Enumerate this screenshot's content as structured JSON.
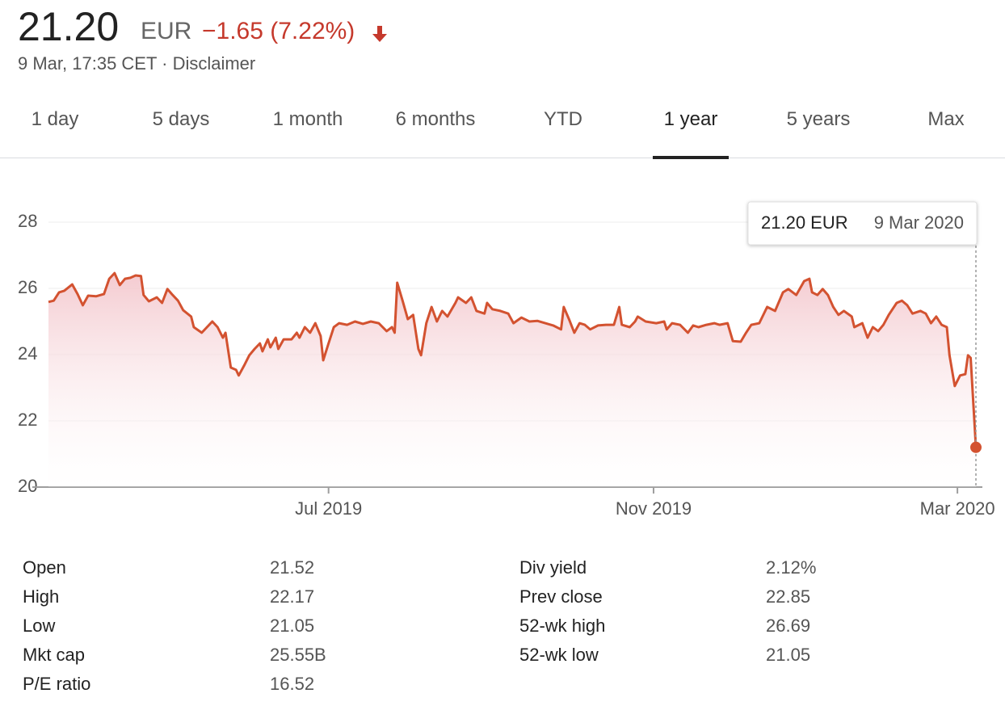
{
  "header": {
    "price": "21.20",
    "currency": "EUR",
    "change": "−1.65 (7.22%)",
    "timestamp": "9 Mar, 17:35 CET · Disclaimer"
  },
  "tabs": {
    "items": [
      "1 day",
      "5 days",
      "1 month",
      "6 months",
      "YTD",
      "1 year",
      "5 years",
      "Max"
    ],
    "active": 5
  },
  "chart_data": {
    "type": "line",
    "color": "#d35230",
    "grid": true,
    "tooltip": {
      "value": "21.20 EUR",
      "date": "9 Mar 2020"
    },
    "xlim": [
      0,
      351
    ],
    "xticks": [
      {
        "value": 106,
        "label": "Jul 2019"
      },
      {
        "value": 229,
        "label": "Nov 2019"
      },
      {
        "value": 344,
        "label": "Mar 2020"
      }
    ],
    "ylim": [
      20,
      28
    ],
    "yticks": [
      20,
      22,
      24,
      26,
      28
    ],
    "x": [
      0,
      2,
      4,
      6,
      9,
      11,
      13,
      15,
      18,
      21,
      23,
      25,
      27,
      29,
      31,
      33,
      35,
      36,
      38,
      41,
      43,
      45,
      47,
      49,
      51,
      54,
      55,
      58,
      60,
      62,
      64,
      66,
      67,
      69,
      71,
      72,
      74,
      76,
      78,
      80,
      81,
      83,
      84,
      86,
      87,
      89,
      92,
      94,
      95,
      97,
      99,
      101,
      103,
      104,
      106,
      108,
      110,
      113,
      116,
      119,
      122,
      125,
      128,
      130,
      131,
      132,
      134,
      136,
      138,
      140,
      141,
      143,
      145,
      147,
      149,
      151,
      154,
      155,
      158,
      160,
      162,
      165,
      166,
      168,
      171,
      174,
      176,
      179,
      182,
      185,
      188,
      191,
      194,
      195,
      197,
      199,
      201,
      203,
      205,
      208,
      211,
      214,
      216,
      217,
      220,
      222,
      223,
      226,
      230,
      233,
      234,
      236,
      239,
      242,
      244,
      246,
      249,
      252,
      254,
      257,
      259,
      262,
      264,
      266,
      269,
      272,
      275,
      278,
      280,
      283,
      286,
      288,
      289,
      291,
      293,
      295,
      297,
      299,
      301,
      304,
      305,
      308,
      310,
      312,
      314,
      316,
      318,
      321,
      323,
      325,
      327,
      330,
      332,
      334,
      336,
      338,
      340,
      341,
      343,
      345,
      347,
      348,
      349,
      351
    ],
    "values": [
      25.59,
      25.63,
      25.88,
      25.93,
      26.12,
      25.83,
      25.49,
      25.78,
      25.76,
      25.83,
      26.29,
      26.46,
      26.1,
      26.29,
      26.32,
      26.39,
      26.37,
      25.8,
      25.61,
      25.73,
      25.56,
      25.98,
      25.8,
      25.63,
      25.34,
      25.15,
      24.83,
      24.66,
      24.83,
      25.0,
      24.83,
      24.51,
      24.66,
      23.61,
      23.54,
      23.37,
      23.66,
      23.98,
      24.17,
      24.34,
      24.1,
      24.46,
      24.22,
      24.51,
      24.17,
      24.46,
      24.46,
      24.66,
      24.51,
      24.83,
      24.66,
      24.95,
      24.56,
      23.83,
      24.34,
      24.83,
      24.95,
      24.9,
      25.0,
      24.93,
      25.0,
      24.95,
      24.71,
      24.83,
      24.66,
      26.17,
      25.63,
      25.07,
      25.2,
      24.17,
      23.98,
      24.95,
      25.44,
      25.0,
      25.32,
      25.15,
      25.56,
      25.73,
      25.56,
      25.73,
      25.32,
      25.24,
      25.56,
      25.37,
      25.32,
      25.24,
      24.95,
      25.12,
      25.0,
      25.02,
      24.95,
      24.88,
      24.76,
      25.44,
      25.07,
      24.66,
      24.95,
      24.9,
      24.76,
      24.88,
      24.9,
      24.9,
      25.44,
      24.9,
      24.83,
      25.0,
      25.15,
      25.0,
      24.95,
      25.0,
      24.76,
      24.95,
      24.9,
      24.66,
      24.88,
      24.83,
      24.9,
      24.95,
      24.9,
      24.95,
      24.41,
      24.39,
      24.66,
      24.9,
      24.95,
      25.44,
      25.32,
      25.88,
      25.98,
      25.8,
      26.22,
      26.29,
      25.88,
      25.8,
      25.98,
      25.8,
      25.44,
      25.2,
      25.32,
      25.15,
      24.83,
      24.95,
      24.51,
      24.83,
      24.71,
      24.9,
      25.2,
      25.56,
      25.63,
      25.49,
      25.24,
      25.32,
      25.24,
      24.95,
      25.15,
      24.9,
      24.83,
      23.98,
      23.05,
      23.37,
      23.41,
      23.98,
      23.9,
      21.2
    ]
  },
  "stats": [
    [
      {
        "label": "Open",
        "value": "21.52"
      },
      {
        "label": "High",
        "value": "22.17"
      },
      {
        "label": "Low",
        "value": "21.05"
      },
      {
        "label": "Mkt cap",
        "value": "25.55B"
      },
      {
        "label": "P/E ratio",
        "value": "16.52"
      }
    ],
    [
      {
        "label": "Div yield",
        "value": "2.12%"
      },
      {
        "label": "Prev close",
        "value": "22.85"
      },
      {
        "label": "52-wk high",
        "value": "26.69"
      },
      {
        "label": "52-wk low",
        "value": "21.05"
      }
    ]
  ]
}
